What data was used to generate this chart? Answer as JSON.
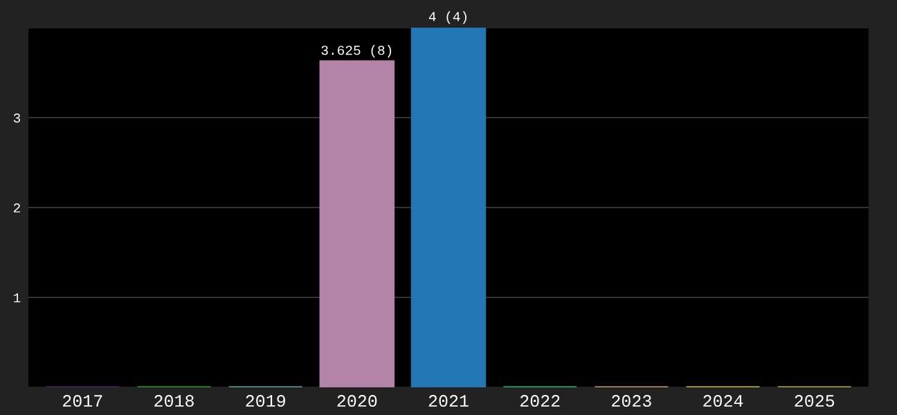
{
  "chart_data": {
    "type": "bar",
    "categories": [
      "2017",
      "2018",
      "2019",
      "2020",
      "2021",
      "2022",
      "2023",
      "2024",
      "2025"
    ],
    "values": [
      0,
      0,
      0,
      3.625,
      4,
      0,
      0,
      0,
      0
    ],
    "colors": [
      "#4a2a5e",
      "#2ca02c",
      "#5fa8a8",
      "#b384a8",
      "#2377b4",
      "#22c06a",
      "#c8a070",
      "#c8c030",
      "#b8b040"
    ],
    "value_labels": [
      null,
      null,
      null,
      "3.625 (8)",
      "4 (4)",
      null,
      null,
      null,
      null
    ],
    "ylim": [
      0,
      4
    ],
    "yticks": [
      1,
      2,
      3
    ],
    "grid": "y",
    "legend": false
  }
}
